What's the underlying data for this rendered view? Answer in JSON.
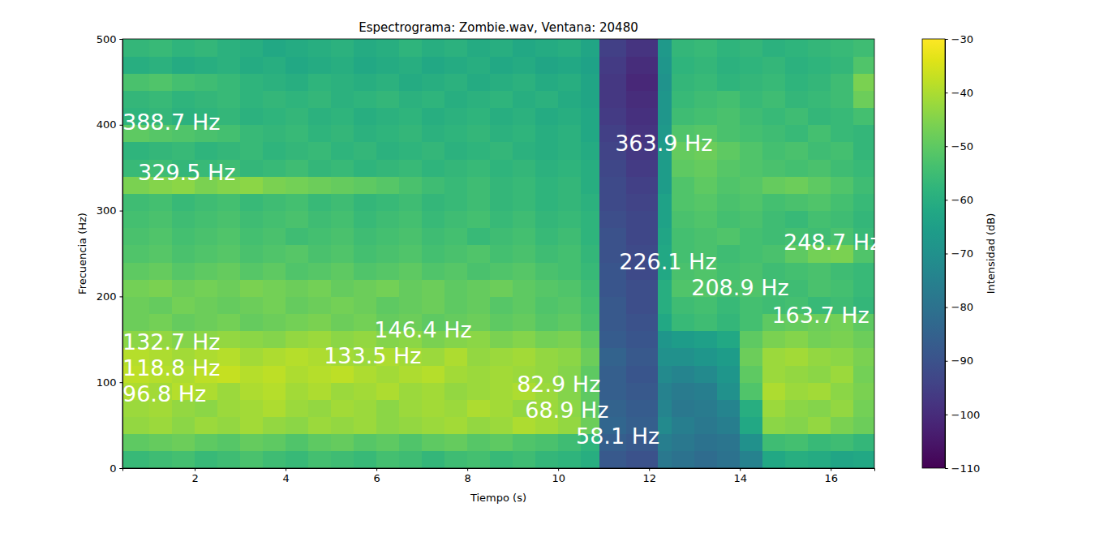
{
  "chart_data": {
    "type": "heatmap",
    "title": "Espectrograma: Zombie.wav, Ventana: 20480",
    "x_label": "Tiempo (s)",
    "y_label": "Frecuencia (Hz)",
    "xlim": [
      0.41,
      16.96
    ],
    "ylim": [
      0,
      500
    ],
    "xticks": [
      2,
      4,
      6,
      8,
      10,
      12,
      14,
      16
    ],
    "yticks": [
      0,
      100,
      200,
      300,
      400,
      500
    ],
    "x_edges": [
      0.41,
      1,
      1.5,
      2,
      2.5,
      3,
      3.5,
      4,
      4.5,
      5,
      5.5,
      6,
      6.5,
      7,
      7.5,
      8,
      8.5,
      9,
      9.5,
      10,
      10.5,
      10.9,
      11.5,
      12.2,
      12.5,
      13,
      13.5,
      14,
      14.5,
      15,
      15.5,
      16,
      16.5,
      16.96
    ],
    "y_edges": [
      0,
      20,
      40,
      60,
      80,
      100,
      120,
      140,
      160,
      180,
      200,
      220,
      240,
      260,
      280,
      300,
      320,
      340,
      360,
      380,
      400,
      420,
      440,
      460,
      480,
      500
    ],
    "cells": [
      [
        -56,
        -55,
        -54,
        -56,
        -55,
        -53,
        -55,
        -56,
        -54,
        -55,
        -56,
        -54,
        -55,
        -57,
        -55,
        -54,
        -56,
        -55,
        -57,
        -58,
        -60,
        -88,
        -90,
        -78,
        -80,
        -82,
        -80,
        -75,
        -62,
        -60,
        -61,
        -63,
        -62
      ],
      [
        -50,
        -49,
        -48,
        -50,
        -51,
        -49,
        -50,
        -52,
        -50,
        -49,
        -51,
        -50,
        -52,
        -50,
        -49,
        -51,
        -50,
        -52,
        -53,
        -55,
        -58,
        -86,
        -88,
        -76,
        -78,
        -80,
        -79,
        -70,
        -55,
        -54,
        -56,
        -55,
        -57
      ],
      [
        -43,
        -42,
        -44,
        -42,
        -43,
        -41,
        -43,
        -44,
        -42,
        -43,
        -42,
        -44,
        -43,
        -42,
        -41,
        -43,
        -42,
        -40,
        -41,
        -43,
        -48,
        -84,
        -86,
        -72,
        -76,
        -78,
        -76,
        -62,
        -44,
        -45,
        -43,
        -46,
        -48
      ],
      [
        -42,
        -41,
        -43,
        -44,
        -42,
        -41,
        -40,
        -42,
        -43,
        -41,
        -42,
        -44,
        -42,
        -41,
        -42,
        -40,
        -41,
        -43,
        -42,
        -44,
        -50,
        -85,
        -87,
        -74,
        -78,
        -77,
        -74,
        -60,
        -42,
        -44,
        -45,
        -43,
        -47
      ],
      [
        -40,
        -41,
        -39,
        -40,
        -42,
        -40,
        -39,
        -41,
        -40,
        -42,
        -41,
        -40,
        -42,
        -41,
        -43,
        -42,
        -41,
        -40,
        -42,
        -45,
        -50,
        -86,
        -88,
        -75,
        -77,
        -76,
        -70,
        -52,
        -40,
        -42,
        -41,
        -44,
        -46
      ],
      [
        -38,
        -39,
        -40,
        -38,
        -37,
        -39,
        -38,
        -40,
        -39,
        -38,
        -40,
        -41,
        -40,
        -39,
        -41,
        -42,
        -41,
        -42,
        -43,
        -45,
        -50,
        -86,
        -89,
        -72,
        -74,
        -72,
        -68,
        -50,
        -42,
        -43,
        -44,
        -42,
        -47
      ],
      [
        -39,
        -40,
        -41,
        -40,
        -39,
        -41,
        -40,
        -39,
        -40,
        -41,
        -42,
        -40,
        -41,
        -42,
        -40,
        -43,
        -42,
        -41,
        -43,
        -44,
        -48,
        -85,
        -88,
        -70,
        -70,
        -68,
        -66,
        -48,
        -42,
        -41,
        -43,
        -44,
        -46
      ],
      [
        -44,
        -43,
        -45,
        -44,
        -43,
        -44,
        -45,
        -43,
        -42,
        -44,
        -43,
        -45,
        -44,
        -46,
        -45,
        -44,
        -46,
        -45,
        -47,
        -46,
        -50,
        -87,
        -89,
        -68,
        -66,
        -65,
        -62,
        -50,
        -46,
        -45,
        -47,
        -46,
        -48
      ],
      [
        -48,
        -47,
        -49,
        -48,
        -47,
        -49,
        -48,
        -47,
        -46,
        -48,
        -47,
        -49,
        -48,
        -50,
        -49,
        -48,
        -50,
        -49,
        -51,
        -50,
        -53,
        -88,
        -90,
        -62,
        -56,
        -55,
        -57,
        -54,
        -50,
        -49,
        -48,
        -47,
        -50
      ],
      [
        -48,
        -49,
        -47,
        -48,
        -49,
        -48,
        -47,
        -49,
        -48,
        -47,
        -48,
        -50,
        -49,
        -48,
        -50,
        -49,
        -51,
        -50,
        -52,
        -51,
        -54,
        -88,
        -91,
        -60,
        -55,
        -54,
        -56,
        -54,
        -55,
        -54,
        -56,
        -55,
        -57
      ],
      [
        -47,
        -46,
        -48,
        -47,
        -48,
        -46,
        -47,
        -48,
        -47,
        -49,
        -48,
        -47,
        -49,
        -48,
        -50,
        -49,
        -48,
        -50,
        -51,
        -52,
        -55,
        -89,
        -91,
        -60,
        -52,
        -51,
        -53,
        -52,
        -54,
        -55,
        -53,
        -54,
        -56
      ],
      [
        -50,
        -49,
        -51,
        -50,
        -49,
        -51,
        -50,
        -52,
        -51,
        -50,
        -52,
        -51,
        -50,
        -52,
        -51,
        -53,
        -52,
        -51,
        -53,
        -54,
        -56,
        -89,
        -92,
        -62,
        -53,
        -52,
        -54,
        -53,
        -55,
        -54,
        -53,
        -55,
        -56
      ],
      [
        -52,
        -51,
        -53,
        -52,
        -51,
        -53,
        -52,
        -51,
        -53,
        -52,
        -54,
        -53,
        -52,
        -54,
        -53,
        -52,
        -54,
        -53,
        -55,
        -54,
        -57,
        -90,
        -92,
        -62,
        -54,
        -53,
        -55,
        -54,
        -53,
        -50,
        -47,
        -46,
        -52
      ],
      [
        -53,
        -52,
        -54,
        -53,
        -52,
        -54,
        -53,
        -55,
        -54,
        -53,
        -55,
        -54,
        -53,
        -55,
        -54,
        -56,
        -55,
        -54,
        -56,
        -55,
        -58,
        -90,
        -93,
        -63,
        -54,
        -53,
        -52,
        -54,
        -55,
        -54,
        -55,
        -53,
        -56
      ],
      [
        -54,
        -53,
        -55,
        -54,
        -53,
        -55,
        -54,
        -53,
        -55,
        -54,
        -56,
        -55,
        -54,
        -56,
        -55,
        -54,
        -56,
        -55,
        -57,
        -56,
        -58,
        -91,
        -93,
        -64,
        -53,
        -52,
        -54,
        -53,
        -55,
        -56,
        -54,
        -55,
        -57
      ],
      [
        -55,
        -54,
        -56,
        -55,
        -54,
        -56,
        -55,
        -54,
        -56,
        -55,
        -57,
        -56,
        -55,
        -57,
        -56,
        -55,
        -57,
        -56,
        -58,
        -57,
        -59,
        -92,
        -94,
        -64,
        -52,
        -51,
        -53,
        -52,
        -54,
        -53,
        -52,
        -54,
        -56
      ],
      [
        -46,
        -45,
        -44,
        -46,
        -45,
        -44,
        -46,
        -47,
        -48,
        -49,
        -50,
        -51,
        -53,
        -55,
        -56,
        -55,
        -57,
        -56,
        -58,
        -57,
        -60,
        -92,
        -95,
        -66,
        -52,
        -50,
        -52,
        -51,
        -49,
        -48,
        -50,
        -52,
        -55
      ],
      [
        -56,
        -55,
        -57,
        -56,
        -55,
        -57,
        -56,
        -55,
        -57,
        -56,
        -58,
        -57,
        -56,
        -58,
        -57,
        -56,
        -58,
        -57,
        -59,
        -58,
        -60,
        -93,
        -96,
        -66,
        -50,
        -49,
        -51,
        -52,
        -53,
        -54,
        -53,
        -55,
        -56
      ],
      [
        -58,
        -57,
        -56,
        -58,
        -57,
        -56,
        -58,
        -57,
        -56,
        -58,
        -57,
        -59,
        -58,
        -57,
        -59,
        -58,
        -57,
        -59,
        -60,
        -59,
        -61,
        -94,
        -97,
        -66,
        -49,
        -48,
        -50,
        -52,
        -54,
        -53,
        -55,
        -54,
        -57
      ],
      [
        -50,
        -51,
        -52,
        -53,
        -54,
        -56,
        -57,
        -56,
        -58,
        -57,
        -59,
        -58,
        -57,
        -59,
        -58,
        -57,
        -59,
        -58,
        -60,
        -59,
        -62,
        -95,
        -98,
        -67,
        -52,
        -51,
        -53,
        -54,
        -55,
        -56,
        -54,
        -56,
        -57
      ],
      [
        -58,
        -57,
        -59,
        -58,
        -57,
        -59,
        -58,
        -57,
        -59,
        -58,
        -60,
        -59,
        -58,
        -60,
        -59,
        -58,
        -60,
        -59,
        -61,
        -60,
        -62,
        -96,
        -99,
        -68,
        -55,
        -54,
        -53,
        -55,
        -56,
        -55,
        -57,
        -56,
        -54
      ],
      [
        -57,
        -56,
        -58,
        -57,
        -56,
        -58,
        -57,
        -58,
        -57,
        -59,
        -58,
        -57,
        -59,
        -58,
        -60,
        -59,
        -58,
        -60,
        -59,
        -61,
        -63,
        -97,
        -100,
        -68,
        -56,
        -55,
        -54,
        -56,
        -55,
        -57,
        -56,
        -55,
        -48
      ],
      [
        -53,
        -52,
        -54,
        -55,
        -56,
        -58,
        -59,
        -60,
        -58,
        -59,
        -60,
        -59,
        -61,
        -60,
        -59,
        -61,
        -60,
        -59,
        -61,
        -60,
        -63,
        -97,
        -101,
        -69,
        -57,
        -56,
        -58,
        -57,
        -56,
        -58,
        -57,
        -55,
        -46
      ],
      [
        -60,
        -59,
        -61,
        -60,
        -59,
        -61,
        -60,
        -62,
        -61,
        -60,
        -62,
        -61,
        -60,
        -62,
        -61,
        -60,
        -62,
        -61,
        -63,
        -62,
        -64,
        -96,
        -100,
        -68,
        -58,
        -57,
        -59,
        -58,
        -57,
        -59,
        -58,
        -57,
        -52
      ],
      [
        -57,
        -56,
        -58,
        -57,
        -59,
        -60,
        -62,
        -61,
        -60,
        -59,
        -61,
        -60,
        -58,
        -60,
        -59,
        -61,
        -60,
        -62,
        -61,
        -60,
        -63,
        -95,
        -98,
        -67,
        -57,
        -56,
        -58,
        -57,
        -59,
        -58,
        -57,
        -56,
        -55
      ]
    ],
    "colorbar": {
      "label": "Intensidad (dB)",
      "range": [
        -110,
        -30
      ],
      "ticks": [
        {
          "value": -110,
          "label": "−110"
        },
        {
          "value": -100,
          "label": "−100"
        },
        {
          "value": -90,
          "label": "−90"
        },
        {
          "value": -80,
          "label": "−80"
        },
        {
          "value": -70,
          "label": "−70"
        },
        {
          "value": -60,
          "label": "−60"
        },
        {
          "value": -50,
          "label": "−50"
        },
        {
          "value": -40,
          "label": "−40"
        },
        {
          "value": -30,
          "label": "−30"
        }
      ]
    },
    "annotations": [
      {
        "text": "388.7 Hz",
        "x": 0.41,
        "y": 388.7
      },
      {
        "text": "329.5 Hz",
        "x": 0.75,
        "y": 329.5
      },
      {
        "text": "132.7 Hz",
        "x": 0.41,
        "y": 132.7
      },
      {
        "text": "118.8 Hz",
        "x": 0.41,
        "y": 118.8
      },
      {
        "text": "96.8 Hz",
        "x": 0.41,
        "y": 96.8
      },
      {
        "text": "133.5 Hz",
        "x": 4.84,
        "y": 133.5
      },
      {
        "text": "146.4 Hz",
        "x": 5.95,
        "y": 146.4
      },
      {
        "text": "82.9 Hz",
        "x": 9.09,
        "y": 82.9
      },
      {
        "text": "68.9 Hz",
        "x": 9.27,
        "y": 68.9
      },
      {
        "text": "58.1 Hz",
        "x": 10.39,
        "y": 58.1
      },
      {
        "text": "363.9 Hz",
        "x": 11.25,
        "y": 363.9
      },
      {
        "text": "226.1 Hz",
        "x": 11.34,
        "y": 226.1
      },
      {
        "text": "208.9 Hz",
        "x": 12.93,
        "y": 208.9
      },
      {
        "text": "163.7 Hz",
        "x": 14.7,
        "y": 163.7
      },
      {
        "text": "248.7 Hz",
        "x": 14.96,
        "y": 248.7
      }
    ]
  }
}
